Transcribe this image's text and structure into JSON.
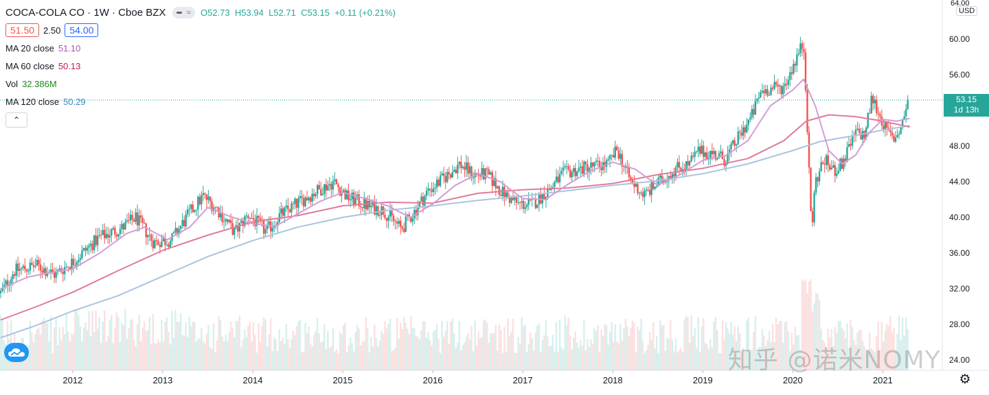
{
  "header": {
    "symbol": "COCA-COLA CO · 1W · Cboe BZX",
    "ohlc": {
      "o": "52.73",
      "h": "53.94",
      "l": "52.71",
      "c": "53.15",
      "chg": "+0.11 (+0.21%)"
    },
    "bid": "51.50",
    "spread": "2.50",
    "ask": "54.00",
    "collapse_icon": "chevron-up-icon"
  },
  "indicators": [
    {
      "label": "MA 20 close",
      "value": "51.10",
      "color": "#c86fc9"
    },
    {
      "label": "MA 60 close",
      "value": "50.13",
      "color": "#d6336c"
    },
    {
      "label": "Vol",
      "value": "32.386M",
      "color": "#1b8a1b"
    },
    {
      "label": "MA 120 close",
      "value": "50.29",
      "color": "#3d85c6"
    }
  ],
  "price_axis": {
    "unit": "USD",
    "top_partial": "64.00",
    "last_price": "53.15",
    "countdown": "1d 13h"
  },
  "watermark": "知乎 @诺米NOMY",
  "colors": {
    "up": "#26a69a",
    "down": "#ef5350",
    "ma20": "#d49bd6",
    "ma60": "#e07a9a",
    "ma120": "#a9c4e0"
  },
  "chart_data": {
    "type": "candlestick",
    "title": "COCA-COLA CO · 1W · Cboe BZX",
    "x_ticks": [
      "2012",
      "2013",
      "2014",
      "2015",
      "2016",
      "2017",
      "2018",
      "2019",
      "2020",
      "2021"
    ],
    "y_ticks": [
      "60.00",
      "56.00",
      "52.00",
      "48.00",
      "44.00",
      "40.00",
      "36.00",
      "32.00",
      "28.00",
      "24.00"
    ],
    "ylim": [
      23.5,
      64.5
    ],
    "xlim": [
      2011.2,
      2021.6
    ],
    "last_close": 53.15,
    "approx_close_path": [
      [
        2011.2,
        31.5
      ],
      [
        2011.35,
        34.0
      ],
      [
        2011.6,
        34.6
      ],
      [
        2011.8,
        33.6
      ],
      [
        2012.0,
        35.0
      ],
      [
        2012.3,
        37.8
      ],
      [
        2012.55,
        38.8
      ],
      [
        2012.7,
        40.0
      ],
      [
        2012.9,
        37.2
      ],
      [
        2013.1,
        37.5
      ],
      [
        2013.3,
        40.5
      ],
      [
        2013.45,
        42.4
      ],
      [
        2013.6,
        41.0
      ],
      [
        2013.8,
        38.3
      ],
      [
        2013.95,
        40.3
      ],
      [
        2014.15,
        38.4
      ],
      [
        2014.3,
        40.2
      ],
      [
        2014.5,
        41.6
      ],
      [
        2014.7,
        42.9
      ],
      [
        2014.9,
        44.0
      ],
      [
        2015.05,
        42.3
      ],
      [
        2015.3,
        41.2
      ],
      [
        2015.45,
        40.8
      ],
      [
        2015.65,
        38.7
      ],
      [
        2015.8,
        40.7
      ],
      [
        2015.95,
        43.0
      ],
      [
        2016.1,
        44.2
      ],
      [
        2016.3,
        46.0
      ],
      [
        2016.45,
        44.8
      ],
      [
        2016.6,
        44.8
      ],
      [
        2016.8,
        42.5
      ],
      [
        2016.95,
        41.5
      ],
      [
        2017.1,
        41.4
      ],
      [
        2017.3,
        43.2
      ],
      [
        2017.45,
        44.9
      ],
      [
        2017.7,
        45.6
      ],
      [
        2017.95,
        46.0
      ],
      [
        2018.05,
        47.6
      ],
      [
        2018.2,
        44.0
      ],
      [
        2018.35,
        42.5
      ],
      [
        2018.5,
        43.8
      ],
      [
        2018.7,
        45.5
      ],
      [
        2018.85,
        46.0
      ],
      [
        2018.95,
        47.4
      ],
      [
        2019.1,
        47.2
      ],
      [
        2019.25,
        46.5
      ],
      [
        2019.4,
        49.0
      ],
      [
        2019.55,
        51.5
      ],
      [
        2019.65,
        54.2
      ],
      [
        2019.8,
        54.5
      ],
      [
        2019.9,
        54.6
      ],
      [
        2020.0,
        57.0
      ],
      [
        2020.08,
        58.8
      ],
      [
        2020.12,
        59.5
      ],
      [
        2020.15,
        53.5
      ],
      [
        2020.18,
        45.0
      ],
      [
        2020.21,
        38.5
      ],
      [
        2020.25,
        44.0
      ],
      [
        2020.35,
        46.5
      ],
      [
        2020.45,
        45.2
      ],
      [
        2020.55,
        46.0
      ],
      [
        2020.7,
        49.5
      ],
      [
        2020.8,
        49.2
      ],
      [
        2020.88,
        53.5
      ],
      [
        2020.95,
        51.8
      ],
      [
        2021.05,
        49.5
      ],
      [
        2021.12,
        48.8
      ],
      [
        2021.2,
        50.0
      ],
      [
        2021.28,
        53.15
      ]
    ],
    "ma20_path": [
      [
        2011.2,
        32.0
      ],
      [
        2011.5,
        33.3
      ],
      [
        2011.8,
        33.9
      ],
      [
        2012.0,
        34.2
      ],
      [
        2012.3,
        36.0
      ],
      [
        2012.6,
        38.2
      ],
      [
        2012.8,
        38.9
      ],
      [
        2013.05,
        37.5
      ],
      [
        2013.3,
        38.9
      ],
      [
        2013.5,
        41.1
      ],
      [
        2013.75,
        40.1
      ],
      [
        2014.0,
        39.3
      ],
      [
        2014.25,
        39.0
      ],
      [
        2014.5,
        40.4
      ],
      [
        2014.75,
        41.8
      ],
      [
        2015.0,
        42.8
      ],
      [
        2015.25,
        42.1
      ],
      [
        2015.5,
        41.3
      ],
      [
        2015.75,
        40.0
      ],
      [
        2016.0,
        41.5
      ],
      [
        2016.25,
        43.6
      ],
      [
        2016.5,
        44.9
      ],
      [
        2016.75,
        44.0
      ],
      [
        2017.0,
        42.1
      ],
      [
        2017.25,
        42.0
      ],
      [
        2017.5,
        43.7
      ],
      [
        2017.75,
        45.2
      ],
      [
        2018.0,
        46.2
      ],
      [
        2018.25,
        45.4
      ],
      [
        2018.5,
        43.6
      ],
      [
        2018.75,
        44.8
      ],
      [
        2019.0,
        46.4
      ],
      [
        2019.25,
        46.9
      ],
      [
        2019.5,
        48.6
      ],
      [
        2019.75,
        52.5
      ],
      [
        2020.0,
        54.3
      ],
      [
        2020.12,
        55.5
      ],
      [
        2020.25,
        52.5
      ],
      [
        2020.4,
        47.5
      ],
      [
        2020.55,
        46.0
      ],
      [
        2020.7,
        47.0
      ],
      [
        2020.85,
        49.5
      ],
      [
        2021.0,
        51.0
      ],
      [
        2021.15,
        50.8
      ],
      [
        2021.3,
        51.1
      ]
    ],
    "ma60_path": [
      [
        2011.2,
        28.5
      ],
      [
        2011.6,
        30.0
      ],
      [
        2012.0,
        31.6
      ],
      [
        2012.5,
        34.0
      ],
      [
        2013.0,
        36.3
      ],
      [
        2013.5,
        38.0
      ],
      [
        2014.0,
        39.5
      ],
      [
        2014.5,
        40.2
      ],
      [
        2015.0,
        41.3
      ],
      [
        2015.5,
        41.7
      ],
      [
        2016.0,
        41.6
      ],
      [
        2016.5,
        42.7
      ],
      [
        2017.0,
        43.1
      ],
      [
        2017.5,
        43.3
      ],
      [
        2018.0,
        43.8
      ],
      [
        2018.5,
        44.8
      ],
      [
        2019.0,
        45.5
      ],
      [
        2019.5,
        46.6
      ],
      [
        2019.9,
        48.6
      ],
      [
        2020.15,
        50.8
      ],
      [
        2020.4,
        51.5
      ],
      [
        2020.7,
        51.3
      ],
      [
        2021.0,
        50.8
      ],
      [
        2021.3,
        50.13
      ]
    ],
    "ma120_path": [
      [
        2011.2,
        26.5
      ],
      [
        2011.6,
        27.9
      ],
      [
        2012.0,
        29.5
      ],
      [
        2012.5,
        31.2
      ],
      [
        2013.0,
        33.4
      ],
      [
        2013.5,
        35.6
      ],
      [
        2014.0,
        37.4
      ],
      [
        2014.5,
        38.9
      ],
      [
        2015.0,
        40.0
      ],
      [
        2015.5,
        40.8
      ],
      [
        2016.0,
        41.3
      ],
      [
        2016.5,
        41.9
      ],
      [
        2017.0,
        42.4
      ],
      [
        2017.5,
        43.0
      ],
      [
        2018.0,
        43.6
      ],
      [
        2018.5,
        44.1
      ],
      [
        2019.0,
        44.9
      ],
      [
        2019.5,
        46.0
      ],
      [
        2020.0,
        47.5
      ],
      [
        2020.3,
        48.5
      ],
      [
        2020.7,
        49.2
      ],
      [
        2021.0,
        49.8
      ],
      [
        2021.3,
        50.29
      ]
    ]
  }
}
